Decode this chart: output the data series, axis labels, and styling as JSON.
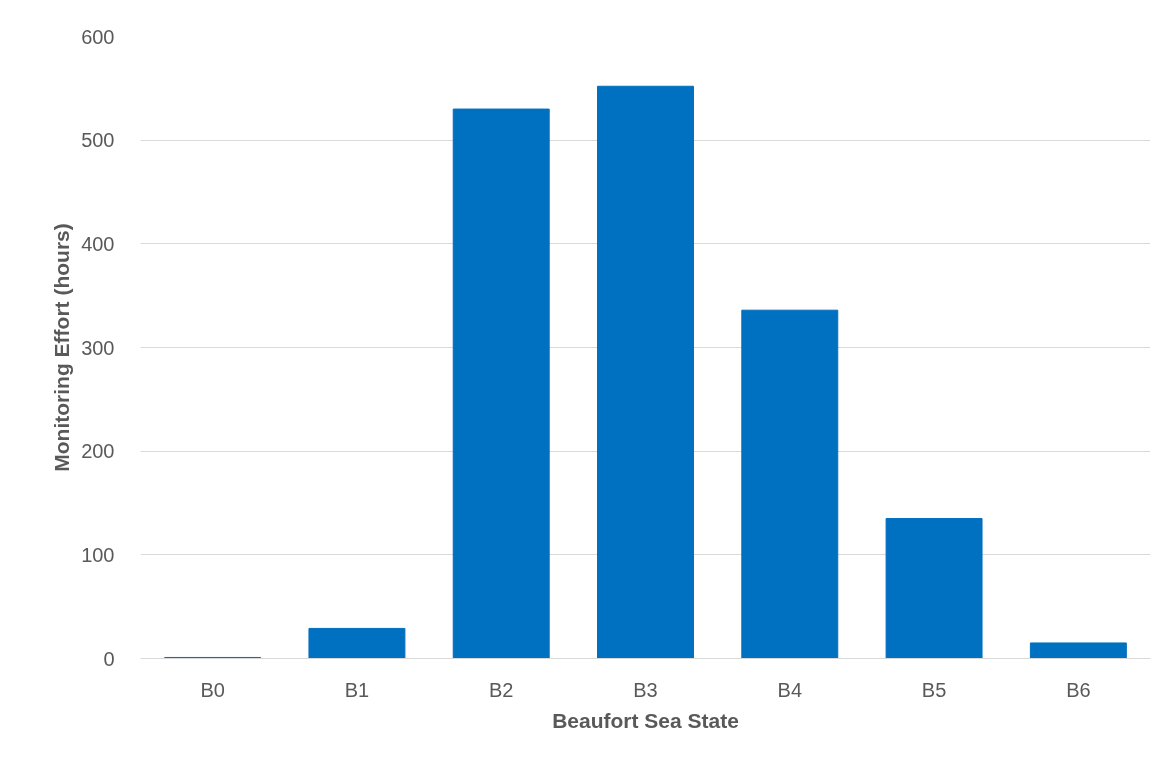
{
  "chart_data": {
    "type": "bar",
    "xlabel": "Beaufort Sea State",
    "ylabel": "Monitoring Effort (hours)",
    "categories": [
      "B0",
      "B1",
      "B2",
      "B3",
      "B4",
      "B5",
      "B6"
    ],
    "values": [
      1,
      29,
      530,
      552,
      336,
      135,
      15
    ],
    "color": "#0070c0",
    "ylim": [
      0,
      600
    ],
    "yticks": [
      0,
      100,
      200,
      300,
      400,
      500,
      600
    ],
    "grid": "y"
  }
}
